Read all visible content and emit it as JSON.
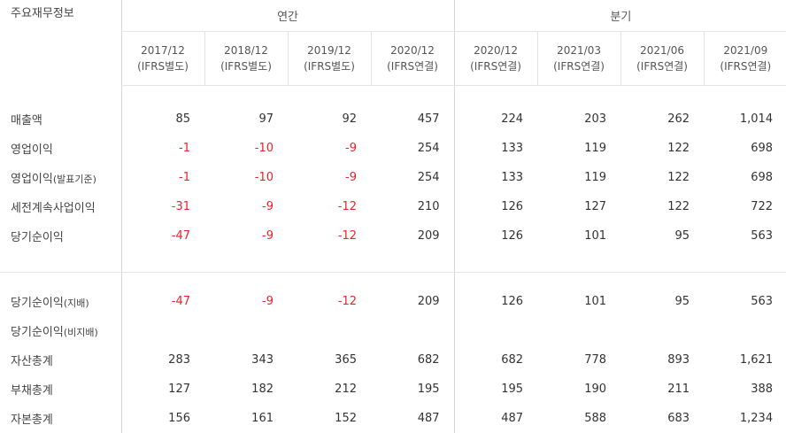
{
  "header": {
    "corner_label": "주요재무정보",
    "group_annual": "연간",
    "group_quarter": "분기"
  },
  "periods": [
    {
      "date": "2017/12",
      "basis": "(IFRS별도)"
    },
    {
      "date": "2018/12",
      "basis": "(IFRS별도)"
    },
    {
      "date": "2019/12",
      "basis": "(IFRS별도)"
    },
    {
      "date": "2020/12",
      "basis": "(IFRS연결)"
    },
    {
      "date": "2020/12",
      "basis": "(IFRS연결)"
    },
    {
      "date": "2021/03",
      "basis": "(IFRS연결)"
    },
    {
      "date": "2021/06",
      "basis": "(IFRS연결)"
    },
    {
      "date": "2021/09",
      "basis": "(IFRS연결)"
    }
  ],
  "rows_top": [
    {
      "label": "매출액",
      "suffix": "",
      "values": [
        "85",
        "97",
        "92",
        "457",
        "224",
        "203",
        "262",
        "1,014"
      ]
    },
    {
      "label": "영업이익",
      "suffix": "",
      "values": [
        "-1",
        "-10",
        "-9",
        "254",
        "133",
        "119",
        "122",
        "698"
      ]
    },
    {
      "label": "영업이익",
      "suffix": "(발표기준)",
      "values": [
        "-1",
        "-10",
        "-9",
        "254",
        "133",
        "119",
        "122",
        "698"
      ]
    },
    {
      "label": "세전계속사업이익",
      "suffix": "",
      "values": [
        "-31",
        "-9",
        "-12",
        "210",
        "126",
        "127",
        "122",
        "722"
      ]
    },
    {
      "label": "당기순이익",
      "suffix": "",
      "values": [
        "-47",
        "-9",
        "-12",
        "209",
        "126",
        "101",
        "95",
        "563"
      ]
    }
  ],
  "rows_bottom": [
    {
      "label": "당기순이익",
      "suffix": "(지배)",
      "values": [
        "-47",
        "-9",
        "-12",
        "209",
        "126",
        "101",
        "95",
        "563"
      ]
    },
    {
      "label": "당기순이익",
      "suffix": "(비지배)",
      "values": [
        "",
        "",
        "",
        "",
        "",
        "",
        "",
        ""
      ]
    },
    {
      "label": "자산총계",
      "suffix": "",
      "values": [
        "283",
        "343",
        "365",
        "682",
        "682",
        "778",
        "893",
        "1,621"
      ]
    },
    {
      "label": "부채총계",
      "suffix": "",
      "values": [
        "127",
        "182",
        "212",
        "195",
        "195",
        "190",
        "211",
        "388"
      ]
    },
    {
      "label": "자본총계",
      "suffix": "",
      "values": [
        "156",
        "161",
        "152",
        "487",
        "487",
        "588",
        "683",
        "1,234"
      ]
    }
  ],
  "colors": {
    "negative": "#e8232a",
    "text": "#333333",
    "border": "#e4e4e4"
  }
}
